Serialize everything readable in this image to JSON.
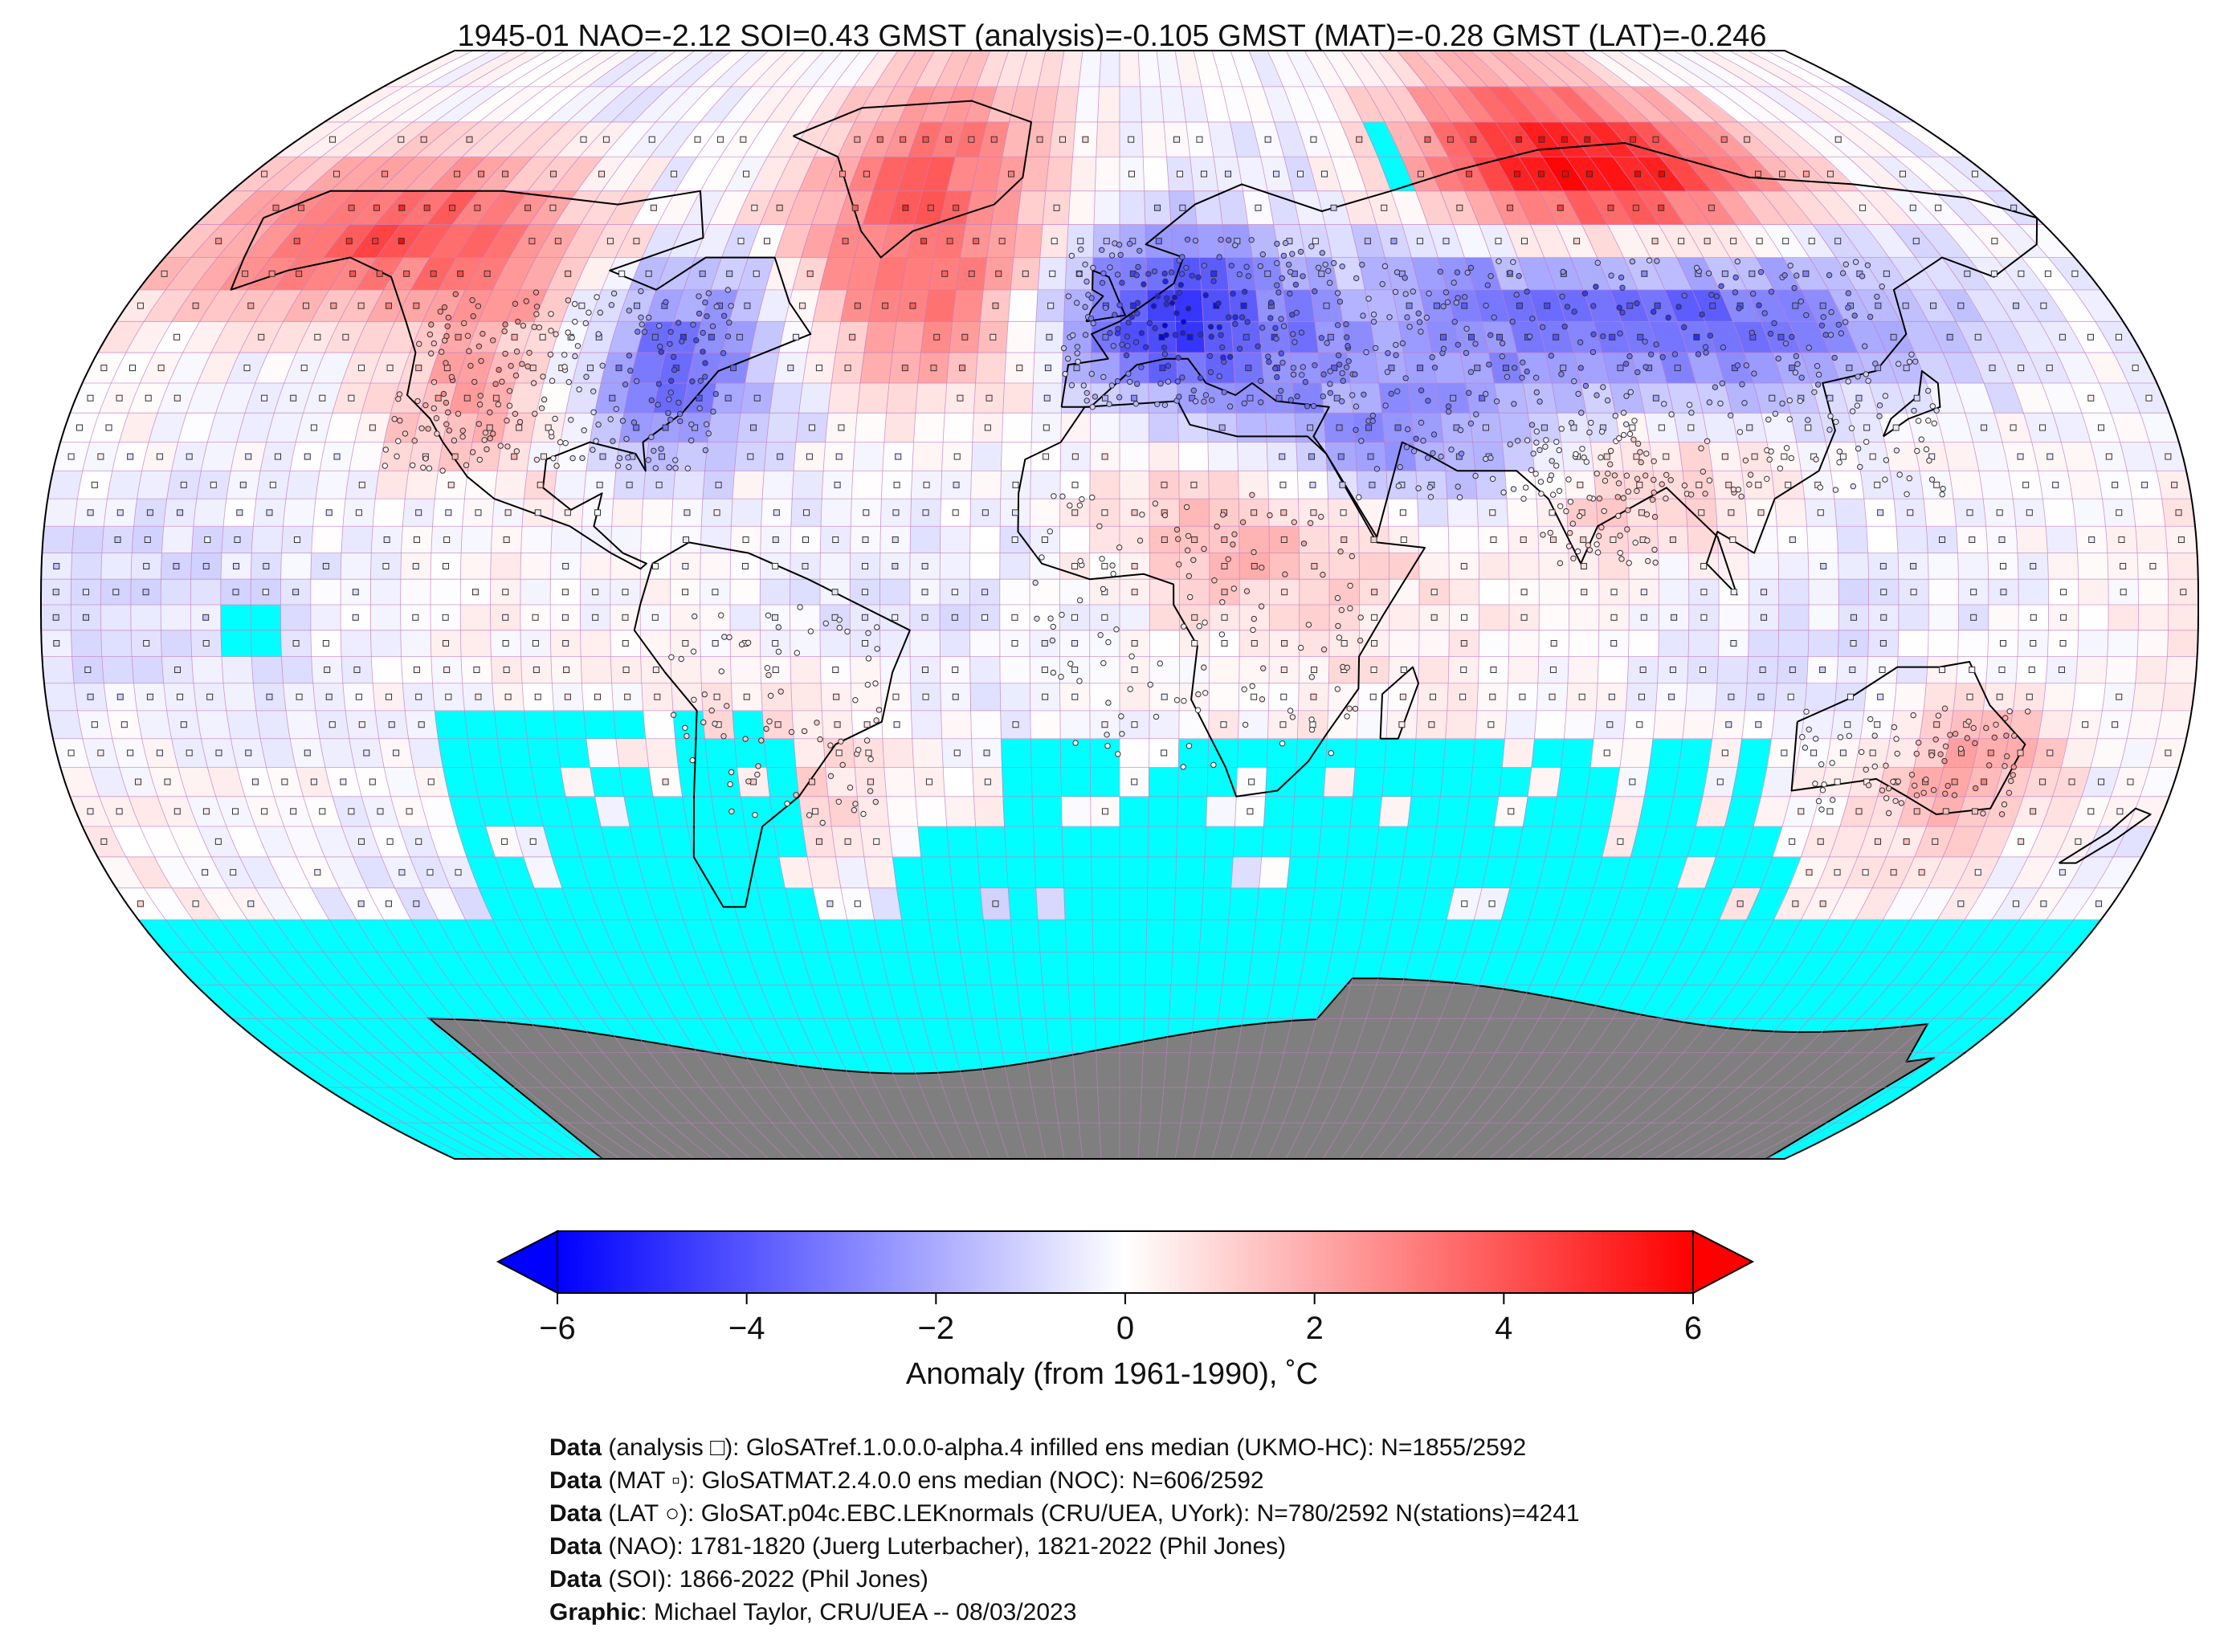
{
  "title": "1945-01 NAO=-2.12 SOI=0.43 GMST (analysis)=-0.105 GMST (MAT)=-0.28 GMST (LAT)=-0.246",
  "colors": {
    "cold": "#0000ff",
    "warm": "#ff0000",
    "neutral": "#ffffff",
    "no_data": "#00ffff",
    "antarctica": "#7f7f7f",
    "grid_line": "#c080c0"
  },
  "colorbar": {
    "min": -6,
    "max": 6,
    "ticks": [
      "−6",
      "−4",
      "−2",
      "0",
      "2",
      "4",
      "6"
    ],
    "tick_values": [
      -6,
      -4,
      -2,
      0,
      2,
      4,
      6
    ],
    "extend": "both",
    "label": "Anomaly (from 1961-1990), ˚C"
  },
  "credits": [
    {
      "bold": "Data",
      "text": " (analysis □): GloSATref.1.0.0.0-alpha.4 infilled ens median (UKMO-HC): N=1855/2592"
    },
    {
      "bold": "Data",
      "text": " (MAT ▫): GloSATMAT.2.4.0.0 ens median (NOC): N=606/2592"
    },
    {
      "bold": "Data",
      "text": " (LAT ○): GloSAT.p04c.EBC.LEKnormals (CRU/UEA, UYork): N=780/2592 N(stations)=4241"
    },
    {
      "bold": "Data",
      "text": " (NAO): 1781-1820 (Juerg Luterbacher), 1821-2022 (Phil Jones)"
    },
    {
      "bold": "Data",
      "text": " (SOI): 1866-2022 (Phil Jones)"
    },
    {
      "bold": "Graphic",
      "text": ": Michael Taylor, CRU/UEA -- 08/03/2023"
    }
  ],
  "regions": [
    {
      "name": "alaska-yukon",
      "lon": [
        -170,
        -105
      ],
      "lat": [
        55,
        72
      ],
      "anomaly": 4.5
    },
    {
      "name": "greenland",
      "lon": [
        -60,
        -20
      ],
      "lat": [
        60,
        85
      ],
      "anomaly": 3.0
    },
    {
      "name": "western-north-america",
      "lon": [
        -125,
        -95
      ],
      "lat": [
        30,
        55
      ],
      "anomaly": 2.5
    },
    {
      "name": "eastern-north-america",
      "lon": [
        -95,
        -60
      ],
      "lat": [
        30,
        55
      ],
      "anomaly": -3.5
    },
    {
      "name": "north-atlantic",
      "lon": [
        -55,
        -15
      ],
      "lat": [
        40,
        60
      ],
      "anomaly": 2.0
    },
    {
      "name": "western-europe",
      "lon": [
        -10,
        30
      ],
      "lat": [
        40,
        60
      ],
      "anomaly": -4.5
    },
    {
      "name": "north-siberia",
      "lon": [
        60,
        130
      ],
      "lat": [
        65,
        82
      ],
      "anomaly": 5.5
    },
    {
      "name": "central-asia",
      "lon": [
        50,
        150
      ],
      "lat": [
        40,
        62
      ],
      "anomaly": -4.0
    },
    {
      "name": "middle-east",
      "lon": [
        20,
        70
      ],
      "lat": [
        20,
        40
      ],
      "anomaly": -2.5
    },
    {
      "name": "sahara",
      "lon": [
        0,
        40
      ],
      "lat": [
        5,
        25
      ],
      "anomaly": 1.5
    },
    {
      "name": "south-asia",
      "lon": [
        70,
        110
      ],
      "lat": [
        10,
        30
      ],
      "anomaly": 1.2
    },
    {
      "name": "eastern-australia",
      "lon": [
        135,
        155
      ],
      "lat": [
        -40,
        -20
      ],
      "anomaly": 2.0
    },
    {
      "name": "eastern-pacific",
      "lon": [
        -180,
        -100
      ],
      "lat": [
        -20,
        20
      ],
      "anomaly": -1.0
    },
    {
      "name": "south-america",
      "lon": [
        -75,
        -40
      ],
      "lat": [
        -40,
        -10
      ],
      "anomaly": 1.0
    },
    {
      "name": "southern-ocean-atlantic",
      "lon": [
        -60,
        10
      ],
      "lat": [
        -65,
        -50
      ],
      "anomaly": -1.5
    }
  ],
  "missing_regions": [
    {
      "lon": [
        -150,
        -140
      ],
      "lat": [
        -10,
        0
      ]
    },
    {
      "lon": [
        -180,
        180
      ],
      "lat": [
        -70,
        -55
      ]
    },
    {
      "lon": [
        -115,
        -55
      ],
      "lat": [
        -55,
        -20
      ]
    },
    {
      "lon": [
        -40,
        120
      ],
      "lat": [
        -55,
        -40
      ]
    },
    {
      "lon": [
        -20,
        110
      ],
      "lat": [
        -40,
        -25
      ]
    },
    {
      "lon": [
        55,
        60
      ],
      "lat": [
        70,
        80
      ]
    }
  ]
}
